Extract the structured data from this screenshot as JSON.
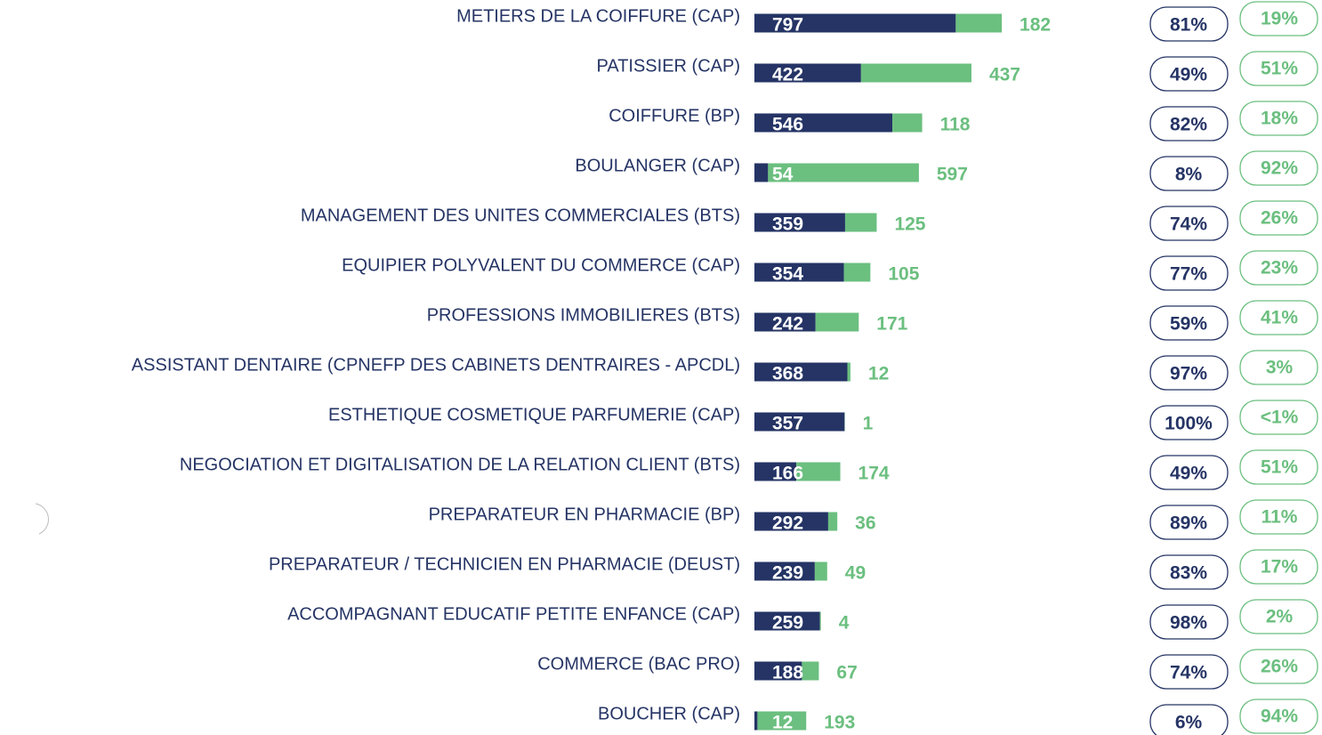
{
  "chart_data": {
    "type": "stacked-bar-horizontal",
    "categories": [
      "METIERS DE LA COIFFURE (CAP)",
      "PATISSIER (CAP)",
      "COIFFURE (BP)",
      "BOULANGER (CAP)",
      "MANAGEMENT DES UNITES COMMERCIALES (BTS)",
      "EQUIPIER POLYVALENT DU COMMERCE (CAP)",
      "PROFESSIONS IMMOBILIERES (BTS)",
      "ASSISTANT DENTAIRE (CPNEFP DES CABINETS DENTRAIRES - APCDL)",
      "ESTHETIQUE COSMETIQUE PARFUMERIE (CAP)",
      "NEGOCIATION ET DIGITALISATION DE LA RELATION CLIENT (BTS)",
      "PREPARATEUR EN PHARMACIE (BP)",
      "PREPARATEUR / TECHNICIEN EN PHARMACIE (DEUST)",
      "ACCOMPAGNANT EDUCATIF PETITE ENFANCE (CAP)",
      "COMMERCE (BAC PRO)",
      "BOUCHER (CAP)"
    ],
    "series": [
      {
        "color": "#253465",
        "values": [
          797,
          422,
          546,
          54,
          359,
          354,
          242,
          368,
          357,
          166,
          292,
          239,
          259,
          188,
          12
        ],
        "shares": [
          "81%",
          "49%",
          "82%",
          "8%",
          "74%",
          "77%",
          "59%",
          "97%",
          "100%",
          "49%",
          "89%",
          "83%",
          "98%",
          "74%",
          "6%"
        ]
      },
      {
        "color": "#6bbf7f",
        "values": [
          182,
          437,
          118,
          597,
          125,
          105,
          171,
          12,
          1,
          174,
          36,
          49,
          4,
          67,
          193
        ],
        "shares": [
          "19%",
          "51%",
          "18%",
          "92%",
          "26%",
          "23%",
          "41%",
          "3%",
          "<1%",
          "51%",
          "11%",
          "17%",
          "2%",
          "26%",
          "94%"
        ]
      }
    ]
  }
}
